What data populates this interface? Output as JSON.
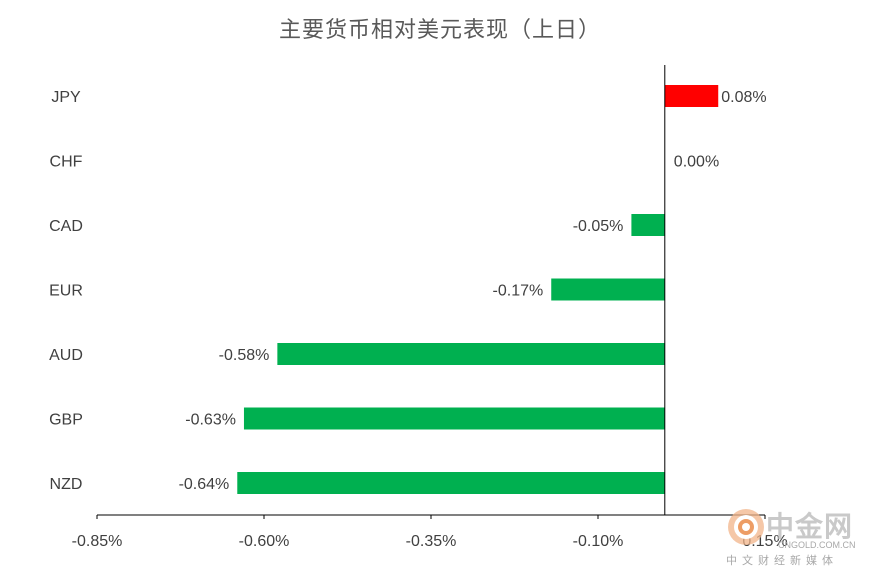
{
  "chart_data": {
    "type": "bar",
    "orientation": "horizontal",
    "title": "主要货币相对美元表现（上日）",
    "categories": [
      "JPY",
      "CHF",
      "CAD",
      "EUR",
      "AUD",
      "GBP",
      "NZD"
    ],
    "values": [
      0.08,
      0.0,
      -0.05,
      -0.17,
      -0.58,
      -0.63,
      -0.64
    ],
    "value_labels": [
      "0.08%",
      "0.00%",
      "-0.05%",
      "-0.17%",
      "-0.58%",
      "-0.63%",
      "-0.64%"
    ],
    "xlim": [
      -0.85,
      0.15
    ],
    "xticks": [
      -0.85,
      -0.6,
      -0.35,
      -0.1,
      0.15
    ],
    "xtick_labels": [
      "-0.85%",
      "-0.60%",
      "-0.35%",
      "-0.10%",
      "0.15%"
    ],
    "grid": false,
    "legend": "none",
    "colors": {
      "positive": "#ff0000",
      "negative": "#00b050",
      "axis": "#000000",
      "text": "#404040"
    }
  },
  "watermark": {
    "brand": "中金网",
    "url": "CNGOLD.COM.CN",
    "tagline": "中文财经新媒体"
  }
}
